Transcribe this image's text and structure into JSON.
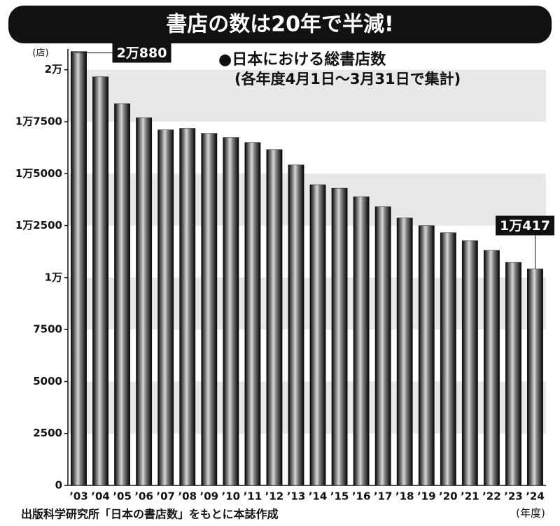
{
  "chart_data": {
    "type": "bar",
    "title": "書店の数は20年で半減!",
    "legend_title": "●日本における総書店数",
    "subtitle": "(各年度4月1日～3月31日で集計)",
    "y_label": "(店)",
    "x_label": "(年度)",
    "source": "出版科学研究所「日本の書店数」をもとに本誌作成",
    "categories": [
      "’03",
      "’04",
      "’05",
      "’06",
      "’07",
      "’08",
      "’09",
      "’10",
      "’11",
      "’12",
      "’13",
      "’14",
      "’15",
      "’16",
      "’17",
      "’18",
      "’19",
      "’20",
      "’21",
      "’22",
      "’23",
      "’24"
    ],
    "values": [
      20880,
      19660,
      18370,
      17690,
      17110,
      17180,
      16940,
      16740,
      16500,
      16160,
      15420,
      14470,
      14300,
      13890,
      13410,
      12870,
      12500,
      12160,
      11780,
      11310,
      10730,
      10417
    ],
    "value_labels": [
      "2万880",
      null,
      null,
      null,
      null,
      null,
      null,
      null,
      null,
      null,
      null,
      null,
      null,
      null,
      null,
      null,
      null,
      null,
      null,
      null,
      null,
      "1万417"
    ],
    "ylim": [
      0,
      21000
    ],
    "yticks": [
      0,
      2500,
      5000,
      7500,
      {
        "value": 10000,
        "label": "1万"
      },
      {
        "value": 12500,
        "label": "1万2500"
      },
      {
        "value": 15000,
        "label": "1万5000"
      },
      {
        "value": 17500,
        "label": "1万7500"
      },
      {
        "value": 20000,
        "label": "2万"
      }
    ],
    "color": "#111111",
    "grid_bands": true
  }
}
